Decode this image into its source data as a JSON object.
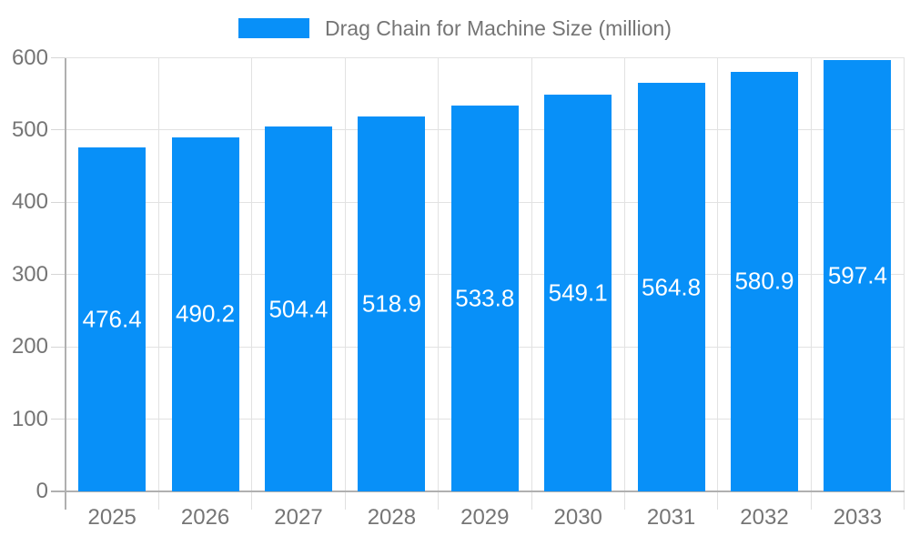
{
  "chart": {
    "legend": {
      "label": "Drag Chain for Machine Size (million)"
    },
    "colors": {
      "bar": "#0890F8",
      "grid": "#e2e2e2",
      "axis": "#b0b0b0",
      "tick": "#d6d6d6",
      "text": "#757575",
      "value_text": "#ffffff",
      "background": "#ffffff"
    }
  },
  "chart_data": {
    "type": "bar",
    "title": "Drag Chain for Machine Size (million)",
    "categories": [
      "2025",
      "2026",
      "2027",
      "2028",
      "2029",
      "2030",
      "2031",
      "2032",
      "2033"
    ],
    "values": [
      476.4,
      490.2,
      504.4,
      518.9,
      533.8,
      549.1,
      564.8,
      580.9,
      597.4
    ],
    "xlabel": "",
    "ylabel": "",
    "ylim": [
      0,
      600
    ],
    "yticks": [
      0,
      100,
      200,
      300,
      400,
      500,
      600
    ],
    "grid": true,
    "legend_position": "top",
    "value_labels": "inside-center"
  }
}
